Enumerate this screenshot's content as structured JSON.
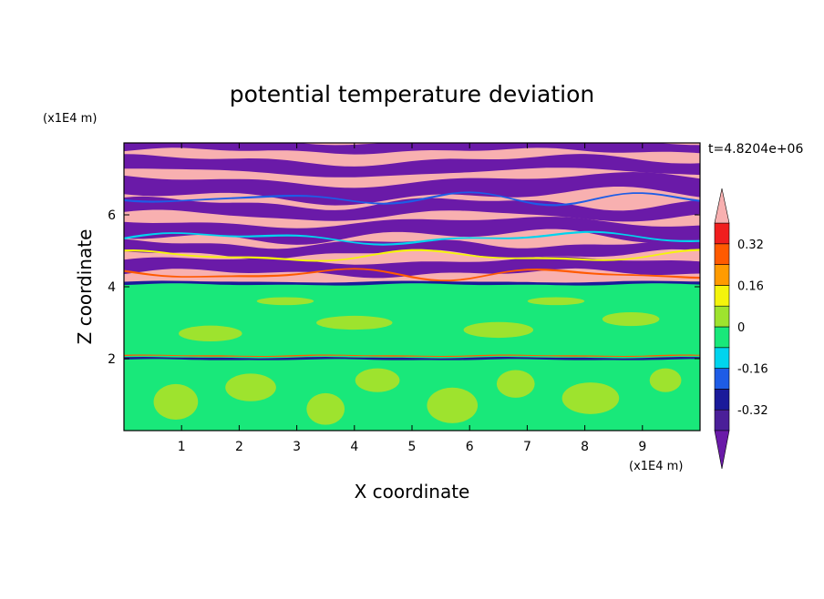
{
  "chart_data": {
    "type": "heatmap",
    "title": "potential temperature deviation",
    "time_label": "t=4.8204e+06",
    "xlabel": "X coordinate",
    "ylabel": "Z coordinate",
    "x_unit": "(x1E4 m)",
    "y_unit": "(x1E4 m)",
    "xlim": [
      0,
      10
    ],
    "ylim": [
      0,
      8
    ],
    "x_ticks": [
      "1",
      "2",
      "3",
      "4",
      "5",
      "6",
      "7",
      "8",
      "9"
    ],
    "y_ticks": [
      "2",
      "4",
      "6"
    ],
    "colorbar": {
      "ticks": [
        "0.32",
        "0.16",
        "0",
        "-0.16",
        "-0.32"
      ],
      "levels": [
        {
          "from": -0.4,
          "to": -0.32,
          "color": "#4b1f99"
        },
        {
          "from": -0.32,
          "to": -0.24,
          "color": "#1a1a9a"
        },
        {
          "from": -0.24,
          "to": -0.16,
          "color": "#1e5ce6"
        },
        {
          "from": -0.16,
          "to": -0.08,
          "color": "#00d4ee"
        },
        {
          "from": -0.08,
          "to": 0.0,
          "color": "#19e87a"
        },
        {
          "from": 0.0,
          "to": 0.08,
          "color": "#9ee32e"
        },
        {
          "from": 0.08,
          "to": 0.16,
          "color": "#f4f40c"
        },
        {
          "from": 0.16,
          "to": 0.24,
          "color": "#ff9b00"
        },
        {
          "from": 0.24,
          "to": 0.32,
          "color": "#ff5a00"
        },
        {
          "from": 0.32,
          "to": 0.4,
          "color": "#f01e1e"
        }
      ],
      "under_color": "#6a1aa8",
      "over_color": "#f8b0b0"
    },
    "colors": {
      "upper_positive": "#f8b0b0",
      "upper_negative": "#6a1aa8",
      "lower_positive": "#9ee32e",
      "lower_negative": "#19e87a",
      "front": "#1a1a9a"
    }
  }
}
